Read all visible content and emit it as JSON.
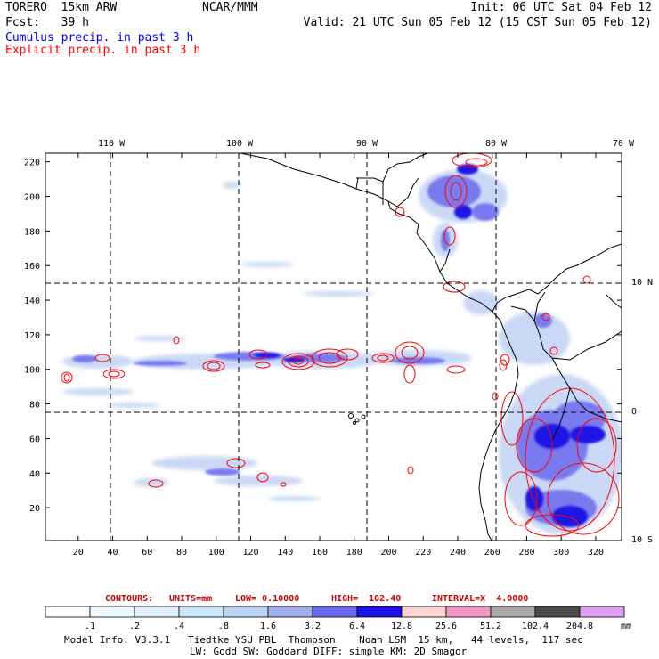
{
  "header": {
    "model": "TORERO  15km ARW",
    "org": "NCAR/MMM",
    "init": "Init: 06 UTC Sat 04 Feb 12",
    "fcst": "Fcst:   39 h",
    "valid": "Valid: 21 UTC Sun 05 Feb 12 (15 CST Sun 05 Feb 12)",
    "line1": "Cumulus precip. in past 3 h",
    "line2": "Explicit precip. in past 3 h"
  },
  "colors": {
    "line1": "#0000ff",
    "line2": "#ff0000",
    "contour": "#ff0000",
    "coast": "#000000"
  },
  "map": {
    "top_lon_labels": [
      "110 W",
      "100 W",
      "90 W",
      "80 W",
      "70 W"
    ],
    "right_lat_labels": [
      "10 N",
      "0",
      "10 S"
    ],
    "y_ticks": [
      20,
      40,
      60,
      80,
      100,
      120,
      140,
      160,
      180,
      200,
      220
    ],
    "x_ticks": [
      20,
      40,
      60,
      80,
      100,
      120,
      140,
      160,
      180,
      200,
      220,
      240,
      260,
      280,
      300,
      320
    ],
    "x_range": [
      1,
      335
    ],
    "y_range": [
      1,
      225
    ]
  },
  "contour_info": {
    "contours": "CONTOURS:",
    "units": "UNITS=mm",
    "low": "LOW= 0.10000",
    "high": "HIGH=  102.40",
    "interval": "INTERVAL=X  4.0000"
  },
  "colorbar": {
    "labels": [
      ".1",
      ".2",
      ".4",
      ".8",
      "1.6",
      "3.2",
      "6.4",
      "12.8",
      "25.6",
      "51.2",
      "102.4",
      "204.8"
    ],
    "unit": "mm",
    "colors": [
      "#ffffff",
      "#f0f8ff",
      "#e0f0ff",
      "#c8e6fa",
      "#bcd2f2",
      "#a0aef0",
      "#6a6af0",
      "#1a12e6",
      "#ffd2d2",
      "#f096c3",
      "#a8a8a8",
      "#4a4a4a",
      "#dca0f0"
    ]
  },
  "footer": {
    "line1": "Model Info: V3.3.1   Tiedtke YSU PBL  Thompson    Noah LSM  15 km,   44 levels,  117 sec",
    "line2": "LW: Godd SW: Goddard DIFF: simple KM: 2D Smagor"
  }
}
